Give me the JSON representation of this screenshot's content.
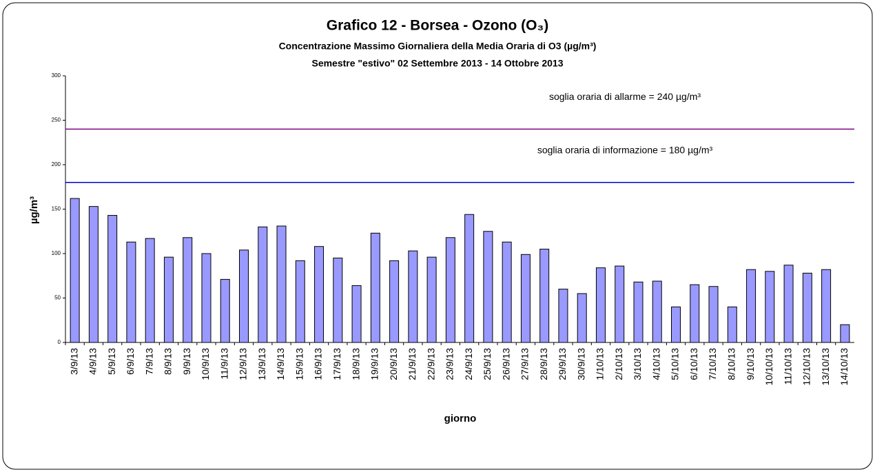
{
  "chart_data": {
    "type": "bar",
    "title": "Grafico 12 - Borsea - Ozono (O₃)",
    "subtitle": "Concentrazione  Massimo Giornaliera della Media Oraria di O3 (µg/m³)",
    "subtitle2": "Semestre \"estivo\" 02 Settembre 2013 - 14 Ottobre 2013",
    "x_label": "giorno",
    "y_label": "µg/m³",
    "categories": [
      "3/9/13",
      "4/9/13",
      "5/9/13",
      "6/9/13",
      "7/9/13",
      "8/9/13",
      "9/9/13",
      "10/9/13",
      "11/9/13",
      "12/9/13",
      "13/9/13",
      "14/9/13",
      "15/9/13",
      "16/9/13",
      "17/9/13",
      "18/9/13",
      "19/9/13",
      "20/9/13",
      "21/9/13",
      "22/9/13",
      "23/9/13",
      "24/9/13",
      "25/9/13",
      "26/9/13",
      "27/9/13",
      "28/9/13",
      "29/9/13",
      "30/9/13",
      "1/10/13",
      "2/10/13",
      "3/10/13",
      "4/10/13",
      "5/10/13",
      "6/10/13",
      "7/10/13",
      "8/10/13",
      "9/10/13",
      "10/10/13",
      "11/10/13",
      "12/10/13",
      "13/10/13",
      "14/10/13"
    ],
    "values": [
      162,
      153,
      143,
      113,
      117,
      96,
      118,
      100,
      71,
      104,
      130,
      131,
      92,
      108,
      95,
      64,
      123,
      92,
      103,
      96,
      118,
      144,
      125,
      113,
      99,
      105,
      60,
      55,
      84,
      86,
      68,
      69,
      40,
      65,
      63,
      40,
      82,
      80,
      87,
      78,
      82,
      20
    ],
    "color": "#9999ff",
    "ylim": [
      0,
      300
    ],
    "yticks": [
      0,
      50,
      100,
      150,
      200,
      250,
      300
    ],
    "reference_lines": [
      {
        "value": 240,
        "label": "soglia oraria di allarme = 240 µg/m³",
        "color": "#800080"
      },
      {
        "value": 180,
        "label": "soglia oraria di informazione = 180 µg/m³",
        "color": "#0000cc"
      }
    ]
  }
}
